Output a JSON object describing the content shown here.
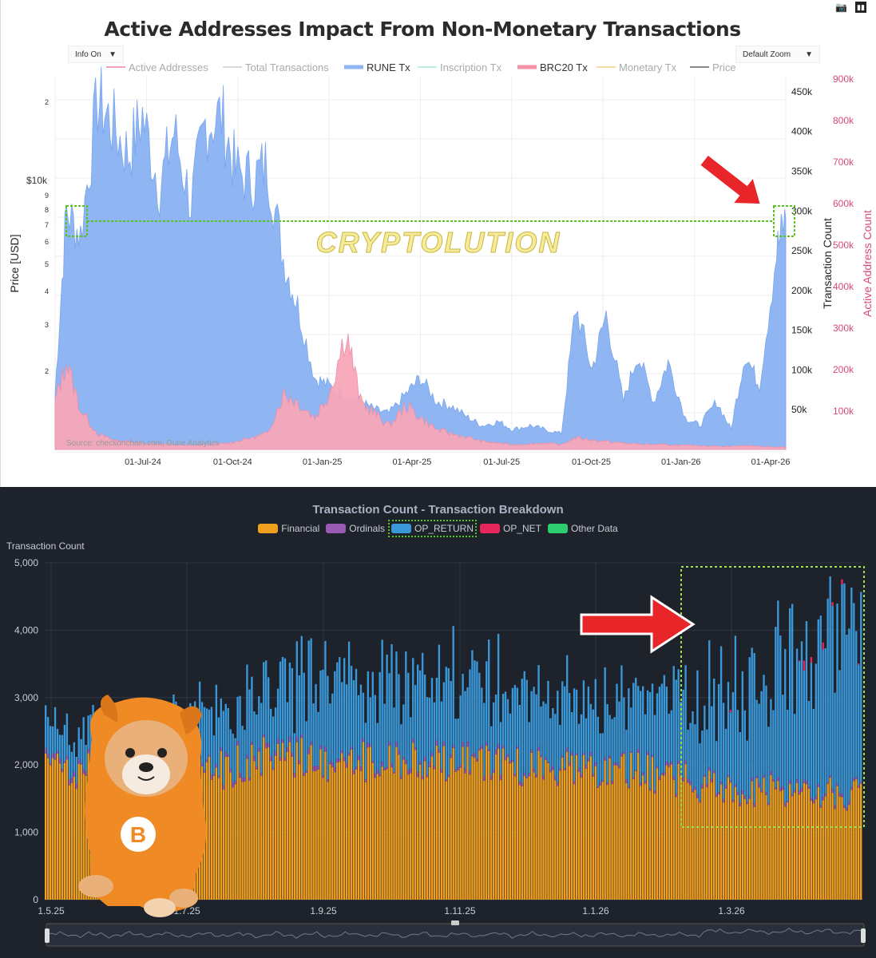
{
  "top": {
    "title": "Active Addresses Impact From Non-Monetary Transactions",
    "info_dropdown": "Info On",
    "zoom_dropdown": "Default Zoom",
    "source": "Source: checkonchain.com, Dune Analytics",
    "watermark": "CRYPTOLUTION",
    "legend": [
      {
        "label": "Active Addresses",
        "color": "#f2a3b5"
      },
      {
        "label": "Total Transactions",
        "color": "#d9d9d9"
      },
      {
        "label": "RUNE Tx",
        "color": "#8fb5f2"
      },
      {
        "label": "Inscription Tx",
        "color": "#bfeedd"
      },
      {
        "label": "BRC20 Tx",
        "color": "#f291a8"
      },
      {
        "label": "Monetary Tx",
        "color": "#f7d9a8"
      },
      {
        "label": "Price",
        "color": "#888888"
      }
    ],
    "y_left_label": "Price [USD]",
    "y_left_ticks": [
      "2",
      "$10k",
      "9",
      "8",
      "7",
      "6",
      "5",
      "4",
      "3",
      "2"
    ],
    "y_right1_label": "Transaction Count",
    "y_right1_ticks": [
      "450k",
      "400k",
      "350k",
      "300k",
      "250k",
      "200k",
      "150k",
      "100k",
      "50k"
    ],
    "y_right2_label": "Active Address Count",
    "y_right2_ticks": [
      "900k",
      "800k",
      "700k",
      "600k",
      "500k",
      "400k",
      "300k",
      "200k",
      "100k"
    ],
    "x_ticks": [
      "01-Jul-24",
      "01-Oct-24",
      "01-Jan-25",
      "01-Apr-25",
      "01-Jul-25",
      "01-Oct-25",
      "01-Jan-26",
      "01-Apr-26"
    ],
    "colors": {
      "rune": "#8fb5f2",
      "brc20": "#f7a6b8",
      "highlight": "#58c322",
      "arrow": "#e8262a"
    }
  },
  "bottom": {
    "title": "Transaction Count - Transaction Breakdown",
    "y_label": "Transaction Count",
    "y_ticks": [
      "5,000",
      "4,000",
      "3,000",
      "2,000",
      "1,000",
      "0"
    ],
    "x_ticks": [
      "1.5.25",
      "1.7.25",
      "1.9.25",
      "1.11.25",
      "1.1.26",
      "1.3.26"
    ],
    "legend": [
      {
        "label": "Financial",
        "color": "#f0a01e"
      },
      {
        "label": "Ordinals",
        "color": "#9b59b6"
      },
      {
        "label": "OP_RETURN",
        "color": "#3a97d8"
      },
      {
        "label": "OP_NET",
        "color": "#e8265e"
      },
      {
        "label": "Other Data",
        "color": "#2ecc71"
      }
    ]
  },
  "chart_data": [
    {
      "type": "area",
      "title": "Active Addresses Impact From Non-Monetary Transactions",
      "ylabel": "Transaction Count",
      "ylim": [
        0,
        470000
      ],
      "x": [
        "2024-04-20",
        "2024-05-01",
        "2024-05-15",
        "2024-06-01",
        "2024-06-15",
        "2024-07-01",
        "2024-07-15",
        "2024-08-01",
        "2024-08-15",
        "2024-09-01",
        "2024-09-15",
        "2024-10-01",
        "2024-10-15",
        "2024-11-01",
        "2024-11-15",
        "2024-12-01",
        "2024-12-15",
        "2025-01-01",
        "2025-01-15",
        "2025-02-01",
        "2025-02-15",
        "2025-03-01",
        "2025-03-15",
        "2025-04-01",
        "2025-04-15",
        "2025-05-01",
        "2025-05-15",
        "2025-06-01",
        "2025-06-15",
        "2025-07-01",
        "2025-07-15",
        "2025-08-01",
        "2025-08-15",
        "2025-09-01",
        "2025-09-15",
        "2025-10-01",
        "2025-10-15",
        "2025-11-01",
        "2025-11-15",
        "2025-12-01",
        "2025-12-15",
        "2026-01-01",
        "2026-01-15",
        "2026-02-01",
        "2026-02-15",
        "2026-03-01",
        "2026-03-15",
        "2026-04-01",
        "2026-04-10"
      ],
      "series": [
        {
          "name": "RUNE Tx",
          "values": [
            70000,
            300000,
            270000,
            440000,
            410000,
            370000,
            420000,
            330000,
            400000,
            310000,
            410000,
            420000,
            350000,
            340000,
            360000,
            240000,
            180000,
            90000,
            80000,
            70000,
            60000,
            50000,
            45000,
            70000,
            90000,
            60000,
            55000,
            40000,
            30000,
            35000,
            25000,
            30000,
            25000,
            20000,
            180000,
            100000,
            170000,
            60000,
            120000,
            60000,
            110000,
            40000,
            30000,
            60000,
            25000,
            120000,
            80000,
            250000,
            290000
          ]
        },
        {
          "name": "BRC20 Tx",
          "values": [
            60000,
            110000,
            50000,
            20000,
            12000,
            10000,
            8000,
            7000,
            6000,
            5000,
            6000,
            7000,
            10000,
            15000,
            20000,
            70000,
            60000,
            40000,
            70000,
            150000,
            60000,
            45000,
            30000,
            55000,
            40000,
            25000,
            20000,
            15000,
            10000,
            8000,
            6000,
            7000,
            8000,
            6000,
            15000,
            12000,
            10000,
            8000,
            7000,
            6000,
            6000,
            5000,
            5000,
            4000,
            4000,
            5000,
            4000,
            3000,
            3000
          ]
        }
      ]
    },
    {
      "type": "bar",
      "title": "Transaction Count - Transaction Breakdown",
      "ylabel": "Transaction Count",
      "ylim": [
        0,
        5000
      ],
      "categories": [
        "1.5.25",
        "1.6.25",
        "1.7.25",
        "1.8.25",
        "1.9.25",
        "1.10.25",
        "1.11.25",
        "1.12.25",
        "1.1.26",
        "1.2.26",
        "1.3.26",
        "1.4.26"
      ],
      "series": [
        {
          "name": "Financial",
          "values": [
            2000,
            1950,
            1850,
            2200,
            2100,
            2100,
            2050,
            2000,
            1950,
            1700,
            1650,
            1600
          ]
        },
        {
          "name": "Ordinals",
          "values": [
            60,
            50,
            50,
            60,
            50,
            50,
            50,
            40,
            40,
            40,
            40,
            40
          ]
        },
        {
          "name": "OP_RETURN",
          "values": [
            450,
            700,
            800,
            1000,
            1200,
            1300,
            1150,
            1050,
            1000,
            1400,
            1950,
            2500
          ]
        },
        {
          "name": "OP_NET",
          "values": [
            0,
            0,
            0,
            0,
            0,
            0,
            0,
            0,
            0,
            0,
            60,
            20
          ]
        },
        {
          "name": "Other Data",
          "values": [
            5,
            5,
            5,
            5,
            5,
            5,
            5,
            5,
            5,
            5,
            5,
            5
          ]
        }
      ]
    }
  ]
}
